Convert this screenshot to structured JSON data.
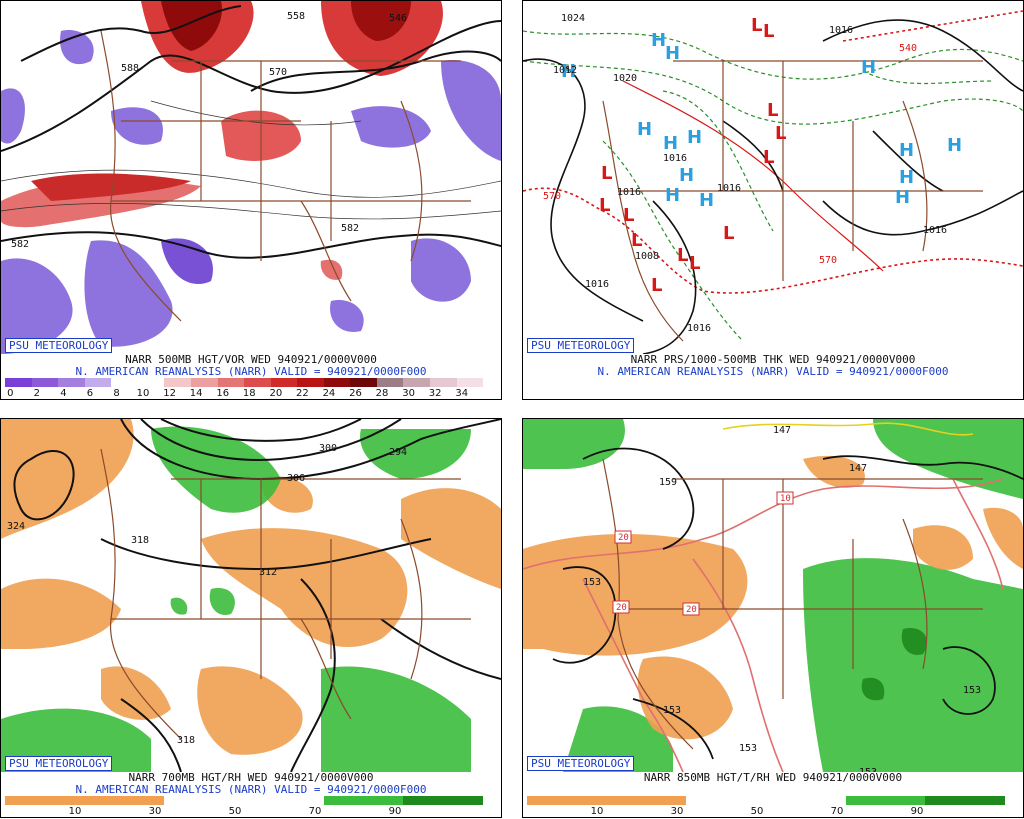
{
  "panels": [
    {
      "badge": "PSU METEOROLOGY",
      "caption1": "NARR 500MB HGT/VOR WED 940921/0000V000",
      "caption2": "N. AMERICAN REANALYSIS (NARR) VALID = 940921/0000F000",
      "scale_ticks": [
        "0",
        "2",
        "4",
        "6",
        "8",
        "10",
        "12",
        "14",
        "16",
        "18",
        "20",
        "22",
        "24",
        "26",
        "28",
        "30",
        "32",
        "34"
      ],
      "scale_colors": [
        "#7a3fd6",
        "#8c5ad8",
        "#a57fe0",
        "#c3aceb",
        "#ffffff",
        "#ffffff",
        "#f3c7c7",
        "#ec9f9f",
        "#e37575",
        "#dc4c4c",
        "#d02b2b",
        "#b81414",
        "#8f0b0b",
        "#6e0707",
        "#9c7e86",
        "#c7a6b0",
        "#e6c9d0",
        "#f4dfe4"
      ],
      "contour_labels": [
        "582",
        "570",
        "546",
        "558",
        "582",
        "588"
      ]
    },
    {
      "badge": "PSU METEOROLOGY",
      "caption1": "NARR PRS/1000-500MB THK WED 940921/0000V000",
      "caption2": "N. AMERICAN REANALYSIS (NARR) VALID = 940921/0000F000",
      "contour_labels": [
        "1024",
        "1012",
        "1020",
        "1016",
        "1016",
        "1016",
        "1008",
        "1016",
        "1016",
        "1016",
        "1016",
        "570",
        "570",
        "540"
      ],
      "high_symbol": "H",
      "low_symbol": "L"
    },
    {
      "badge": "PSU METEOROLOGY",
      "caption1": "NARR 700MB HGT/RH WED 940921/0000V000",
      "caption2": "N. AMERICAN REANALYSIS (NARR) VALID = 940921/0000F000",
      "scale_ticks": [
        "10",
        "30",
        "50",
        "70",
        "90"
      ],
      "contour_labels": [
        "324",
        "300",
        "294",
        "306",
        "318",
        "312",
        "318"
      ]
    },
    {
      "badge": "PSU METEOROLOGY",
      "caption1": "NARR 850MB HGT/T/RH WED 940921/0000V000",
      "caption2": "",
      "scale_ticks": [
        "10",
        "30",
        "50",
        "70",
        "90"
      ],
      "contour_labels": [
        "159",
        "147",
        "147",
        "153",
        "153",
        "153",
        "153",
        "153"
      ],
      "temp_labels": [
        "10",
        "20",
        "20",
        "20"
      ]
    }
  ]
}
